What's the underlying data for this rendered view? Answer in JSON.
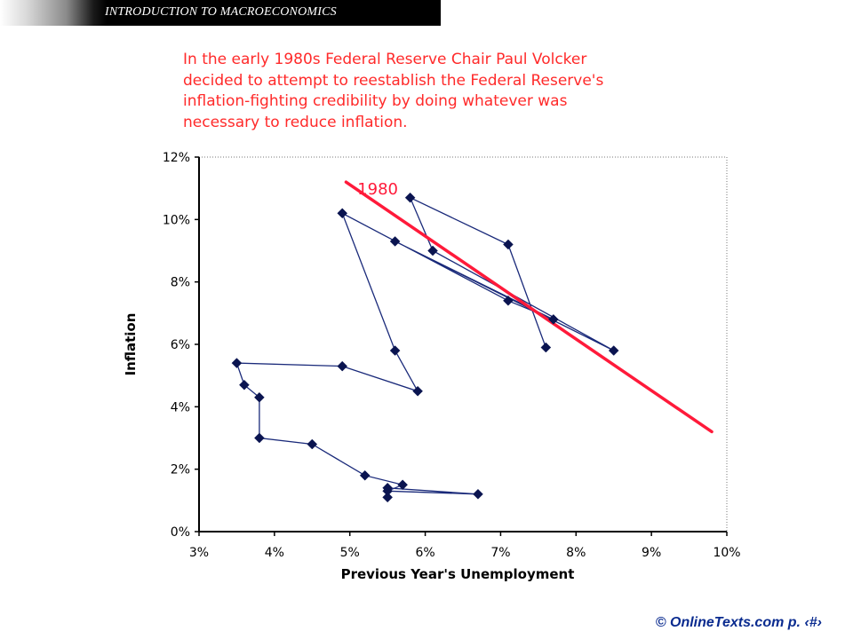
{
  "header": {
    "title": "INTRODUCTION TO MACROECONOMICS"
  },
  "intro_lines": [
    "In the early 1980s Federal Reserve Chair Paul Volcker",
    "decided to attempt to reestablish the Federal Reserve's",
    "inflation-fighting credibility by doing whatever was",
    "necessary to reduce inflation."
  ],
  "footer": {
    "text": "© OnlineTexts.com   p. ‹#›"
  },
  "colors": {
    "series": "#1a2a7a",
    "marker": "#0a1450",
    "trend": "#ff1a3a",
    "intro": "#ff2a2a",
    "footer": "#0a2b8f"
  },
  "chart_data": {
    "type": "scatter",
    "title": "",
    "xlabel": "Previous Year's Unemployment",
    "ylabel": "Inflation",
    "xlim": [
      3,
      10
    ],
    "ylim": [
      0,
      12
    ],
    "x_ticks": [
      3,
      4,
      5,
      6,
      7,
      8,
      9,
      10
    ],
    "x_tick_labels": [
      "3%",
      "4%",
      "5%",
      "6%",
      "7%",
      "8%",
      "9%",
      "10%"
    ],
    "y_ticks": [
      0,
      2,
      4,
      6,
      8,
      10,
      12
    ],
    "y_tick_labels": [
      "0%",
      "2%",
      "4%",
      "6%",
      "8%",
      "10%",
      "12%"
    ],
    "grid": false,
    "series": [
      {
        "connected": true,
        "points": [
          [
            5.5,
            1.1
          ],
          [
            5.5,
            1.4
          ],
          [
            6.7,
            1.2
          ],
          [
            5.5,
            1.3
          ],
          [
            5.7,
            1.5
          ],
          [
            5.2,
            1.8
          ],
          [
            4.5,
            2.8
          ],
          [
            3.8,
            3.0
          ],
          [
            3.8,
            4.3
          ],
          [
            3.6,
            4.7
          ],
          [
            3.5,
            5.4
          ],
          [
            4.9,
            5.3
          ],
          [
            5.9,
            4.5
          ],
          [
            5.6,
            5.8
          ],
          [
            4.9,
            10.2
          ],
          [
            7.1,
            7.4
          ],
          [
            7.7,
            6.8
          ],
          [
            5.6,
            9.3
          ],
          [
            8.5,
            5.8
          ],
          [
            6.1,
            9.0
          ],
          [
            5.8,
            10.7
          ],
          [
            7.1,
            9.2
          ],
          [
            7.6,
            5.9
          ]
        ]
      }
    ],
    "trend_line": {
      "from": [
        4.95,
        11.2
      ],
      "to": [
        9.8,
        3.2
      ]
    },
    "annotations": [
      {
        "text": "1980",
        "x": 5.1,
        "y": 10.8
      }
    ]
  }
}
